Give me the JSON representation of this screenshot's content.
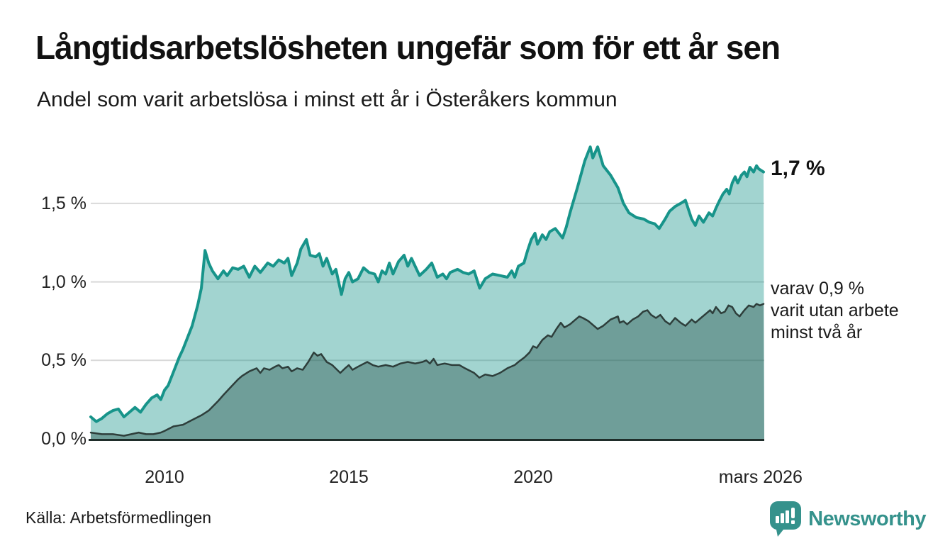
{
  "header": {
    "title": "Långtidsarbetslösheten ungefär som för ett år sen",
    "subtitle": "Andel som varit arbetslösa i minst ett år i Österåkers kommun"
  },
  "annotations": {
    "latest_value": "1,7 %",
    "secondary_lines": [
      "varav 0,9 %",
      "varit utan arbete",
      "minst två år"
    ]
  },
  "footer": {
    "source": "Källa: Arbetsförmedlingen",
    "brand": "Newsworthy"
  },
  "colors": {
    "series1_line": "#17948a",
    "series1_fill": "rgba(23,148,138,0.40)",
    "series2_line": "#2e3e3b",
    "series2_fill": "rgba(30,70,64,0.38)",
    "gridline": "#d9d9d9",
    "baseline": "#1f2d2a",
    "axis_text": "#222222",
    "brand_teal": "#35928c"
  },
  "chart_data": {
    "type": "area",
    "title": "Långtidsarbetslösheten ungefär som för ett år sen",
    "subtitle": "Andel som varit arbetslösa i minst ett år i Österåkers kommun",
    "xlabel": "",
    "ylabel": "",
    "unit": "%",
    "x_domain": [
      2008.0,
      2026.3
    ],
    "ylim": [
      0,
      2.0
    ],
    "grid": "horizontal",
    "legend_position": "right-annotations",
    "y_ticks": [
      {
        "value": 0.0,
        "label": "0,0 %"
      },
      {
        "value": 0.5,
        "label": "0,5 %"
      },
      {
        "value": 1.0,
        "label": "1,0 %"
      },
      {
        "value": 1.5,
        "label": "1,5 %"
      }
    ],
    "x_ticks": [
      {
        "year": 2010,
        "label": "2010"
      },
      {
        "year": 2015,
        "label": "2015"
      },
      {
        "year": 2020,
        "label": "2020"
      },
      {
        "year": 2026.17,
        "label": "mars 2026"
      }
    ],
    "series": [
      {
        "name": "Andel arbetslösa minst ett år",
        "latest": 1.7,
        "points": [
          [
            2008.0,
            0.14
          ],
          [
            2008.15,
            0.11
          ],
          [
            2008.3,
            0.13
          ],
          [
            2008.45,
            0.16
          ],
          [
            2008.6,
            0.18
          ],
          [
            2008.75,
            0.19
          ],
          [
            2008.9,
            0.14
          ],
          [
            2009.05,
            0.17
          ],
          [
            2009.2,
            0.2
          ],
          [
            2009.35,
            0.17
          ],
          [
            2009.5,
            0.22
          ],
          [
            2009.65,
            0.26
          ],
          [
            2009.8,
            0.28
          ],
          [
            2009.9,
            0.25
          ],
          [
            2010.0,
            0.31
          ],
          [
            2010.1,
            0.34
          ],
          [
            2010.25,
            0.43
          ],
          [
            2010.4,
            0.52
          ],
          [
            2010.5,
            0.57
          ],
          [
            2010.65,
            0.66
          ],
          [
            2010.75,
            0.72
          ],
          [
            2010.9,
            0.85
          ],
          [
            2011.0,
            0.96
          ],
          [
            2011.1,
            1.2
          ],
          [
            2011.2,
            1.12
          ],
          [
            2011.3,
            1.07
          ],
          [
            2011.45,
            1.02
          ],
          [
            2011.6,
            1.07
          ],
          [
            2011.7,
            1.04
          ],
          [
            2011.85,
            1.09
          ],
          [
            2012.0,
            1.08
          ],
          [
            2012.15,
            1.1
          ],
          [
            2012.3,
            1.03
          ],
          [
            2012.45,
            1.1
          ],
          [
            2012.6,
            1.06
          ],
          [
            2012.8,
            1.12
          ],
          [
            2012.95,
            1.1
          ],
          [
            2013.1,
            1.14
          ],
          [
            2013.25,
            1.12
          ],
          [
            2013.35,
            1.15
          ],
          [
            2013.45,
            1.04
          ],
          [
            2013.6,
            1.12
          ],
          [
            2013.7,
            1.21
          ],
          [
            2013.85,
            1.27
          ],
          [
            2013.95,
            1.17
          ],
          [
            2014.1,
            1.16
          ],
          [
            2014.2,
            1.18
          ],
          [
            2014.3,
            1.1
          ],
          [
            2014.4,
            1.15
          ],
          [
            2014.55,
            1.05
          ],
          [
            2014.65,
            1.08
          ],
          [
            2014.8,
            0.92
          ],
          [
            2014.9,
            1.02
          ],
          [
            2015.0,
            1.06
          ],
          [
            2015.1,
            1.0
          ],
          [
            2015.25,
            1.02
          ],
          [
            2015.4,
            1.09
          ],
          [
            2015.55,
            1.06
          ],
          [
            2015.7,
            1.05
          ],
          [
            2015.8,
            1.0
          ],
          [
            2015.9,
            1.07
          ],
          [
            2016.0,
            1.05
          ],
          [
            2016.1,
            1.12
          ],
          [
            2016.2,
            1.05
          ],
          [
            2016.35,
            1.13
          ],
          [
            2016.5,
            1.17
          ],
          [
            2016.6,
            1.1
          ],
          [
            2016.7,
            1.15
          ],
          [
            2016.8,
            1.1
          ],
          [
            2016.92,
            1.04
          ],
          [
            2017.1,
            1.08
          ],
          [
            2017.25,
            1.12
          ],
          [
            2017.4,
            1.03
          ],
          [
            2017.55,
            1.05
          ],
          [
            2017.65,
            1.02
          ],
          [
            2017.75,
            1.06
          ],
          [
            2017.95,
            1.08
          ],
          [
            2018.1,
            1.06
          ],
          [
            2018.25,
            1.05
          ],
          [
            2018.4,
            1.07
          ],
          [
            2018.55,
            0.96
          ],
          [
            2018.7,
            1.02
          ],
          [
            2018.9,
            1.05
          ],
          [
            2019.1,
            1.04
          ],
          [
            2019.3,
            1.03
          ],
          [
            2019.42,
            1.07
          ],
          [
            2019.5,
            1.03
          ],
          [
            2019.6,
            1.1
          ],
          [
            2019.75,
            1.12
          ],
          [
            2019.85,
            1.2
          ],
          [
            2019.95,
            1.27
          ],
          [
            2020.05,
            1.31
          ],
          [
            2020.12,
            1.24
          ],
          [
            2020.25,
            1.3
          ],
          [
            2020.35,
            1.27
          ],
          [
            2020.45,
            1.32
          ],
          [
            2020.6,
            1.34
          ],
          [
            2020.8,
            1.28
          ],
          [
            2020.9,
            1.35
          ],
          [
            2021.0,
            1.44
          ],
          [
            2021.2,
            1.6
          ],
          [
            2021.4,
            1.77
          ],
          [
            2021.55,
            1.86
          ],
          [
            2021.62,
            1.79
          ],
          [
            2021.75,
            1.86
          ],
          [
            2021.9,
            1.74
          ],
          [
            2022.1,
            1.68
          ],
          [
            2022.3,
            1.6
          ],
          [
            2022.45,
            1.5
          ],
          [
            2022.6,
            1.44
          ],
          [
            2022.8,
            1.41
          ],
          [
            2023.0,
            1.4
          ],
          [
            2023.15,
            1.38
          ],
          [
            2023.3,
            1.37
          ],
          [
            2023.42,
            1.34
          ],
          [
            2023.58,
            1.4
          ],
          [
            2023.7,
            1.45
          ],
          [
            2023.85,
            1.48
          ],
          [
            2024.0,
            1.5
          ],
          [
            2024.13,
            1.52
          ],
          [
            2024.3,
            1.4
          ],
          [
            2024.4,
            1.36
          ],
          [
            2024.5,
            1.42
          ],
          [
            2024.62,
            1.38
          ],
          [
            2024.77,
            1.44
          ],
          [
            2024.87,
            1.42
          ],
          [
            2024.96,
            1.47
          ],
          [
            2025.06,
            1.52
          ],
          [
            2025.15,
            1.56
          ],
          [
            2025.25,
            1.59
          ],
          [
            2025.32,
            1.56
          ],
          [
            2025.4,
            1.63
          ],
          [
            2025.48,
            1.67
          ],
          [
            2025.55,
            1.63
          ],
          [
            2025.65,
            1.68
          ],
          [
            2025.73,
            1.7
          ],
          [
            2025.8,
            1.67
          ],
          [
            2025.88,
            1.73
          ],
          [
            2025.98,
            1.7
          ],
          [
            2026.06,
            1.74
          ],
          [
            2026.12,
            1.72
          ],
          [
            2026.25,
            1.7
          ]
        ]
      },
      {
        "name": "varav utan arbete minst två år",
        "latest": 0.9,
        "points": [
          [
            2008.0,
            0.04
          ],
          [
            2008.3,
            0.03
          ],
          [
            2008.6,
            0.03
          ],
          [
            2008.9,
            0.02
          ],
          [
            2009.1,
            0.03
          ],
          [
            2009.3,
            0.04
          ],
          [
            2009.5,
            0.03
          ],
          [
            2009.7,
            0.03
          ],
          [
            2009.9,
            0.04
          ],
          [
            2010.0,
            0.05
          ],
          [
            2010.25,
            0.08
          ],
          [
            2010.5,
            0.09
          ],
          [
            2010.75,
            0.12
          ],
          [
            2011.0,
            0.15
          ],
          [
            2011.2,
            0.18
          ],
          [
            2011.45,
            0.24
          ],
          [
            2011.6,
            0.28
          ],
          [
            2011.8,
            0.33
          ],
          [
            2012.0,
            0.38
          ],
          [
            2012.1,
            0.4
          ],
          [
            2012.3,
            0.43
          ],
          [
            2012.5,
            0.45
          ],
          [
            2012.6,
            0.42
          ],
          [
            2012.7,
            0.45
          ],
          [
            2012.85,
            0.44
          ],
          [
            2013.0,
            0.46
          ],
          [
            2013.1,
            0.47
          ],
          [
            2013.2,
            0.45
          ],
          [
            2013.35,
            0.46
          ],
          [
            2013.45,
            0.43
          ],
          [
            2013.6,
            0.45
          ],
          [
            2013.75,
            0.44
          ],
          [
            2013.9,
            0.49
          ],
          [
            2014.05,
            0.55
          ],
          [
            2014.15,
            0.53
          ],
          [
            2014.25,
            0.54
          ],
          [
            2014.4,
            0.49
          ],
          [
            2014.55,
            0.47
          ],
          [
            2014.77,
            0.42
          ],
          [
            2014.9,
            0.45
          ],
          [
            2015.0,
            0.47
          ],
          [
            2015.1,
            0.44
          ],
          [
            2015.25,
            0.46
          ],
          [
            2015.5,
            0.49
          ],
          [
            2015.65,
            0.47
          ],
          [
            2015.8,
            0.46
          ],
          [
            2016.0,
            0.47
          ],
          [
            2016.2,
            0.46
          ],
          [
            2016.4,
            0.48
          ],
          [
            2016.6,
            0.49
          ],
          [
            2016.8,
            0.48
          ],
          [
            2017.0,
            0.49
          ],
          [
            2017.1,
            0.5
          ],
          [
            2017.2,
            0.48
          ],
          [
            2017.3,
            0.51
          ],
          [
            2017.4,
            0.47
          ],
          [
            2017.6,
            0.48
          ],
          [
            2017.8,
            0.47
          ],
          [
            2018.0,
            0.47
          ],
          [
            2018.15,
            0.45
          ],
          [
            2018.4,
            0.42
          ],
          [
            2018.54,
            0.39
          ],
          [
            2018.7,
            0.41
          ],
          [
            2018.9,
            0.4
          ],
          [
            2019.1,
            0.42
          ],
          [
            2019.3,
            0.45
          ],
          [
            2019.5,
            0.47
          ],
          [
            2019.6,
            0.49
          ],
          [
            2019.77,
            0.52
          ],
          [
            2019.9,
            0.55
          ],
          [
            2020.0,
            0.59
          ],
          [
            2020.1,
            0.58
          ],
          [
            2020.25,
            0.63
          ],
          [
            2020.4,
            0.66
          ],
          [
            2020.5,
            0.65
          ],
          [
            2020.63,
            0.7
          ],
          [
            2020.75,
            0.74
          ],
          [
            2020.85,
            0.71
          ],
          [
            2021.0,
            0.73
          ],
          [
            2021.1,
            0.75
          ],
          [
            2021.25,
            0.78
          ],
          [
            2021.35,
            0.77
          ],
          [
            2021.5,
            0.75
          ],
          [
            2021.65,
            0.72
          ],
          [
            2021.75,
            0.7
          ],
          [
            2021.9,
            0.72
          ],
          [
            2022.1,
            0.76
          ],
          [
            2022.3,
            0.78
          ],
          [
            2022.35,
            0.74
          ],
          [
            2022.45,
            0.75
          ],
          [
            2022.55,
            0.73
          ],
          [
            2022.7,
            0.76
          ],
          [
            2022.85,
            0.78
          ],
          [
            2022.98,
            0.81
          ],
          [
            2023.1,
            0.82
          ],
          [
            2023.2,
            0.79
          ],
          [
            2023.33,
            0.77
          ],
          [
            2023.45,
            0.79
          ],
          [
            2023.58,
            0.75
          ],
          [
            2023.71,
            0.73
          ],
          [
            2023.85,
            0.77
          ],
          [
            2024.0,
            0.74
          ],
          [
            2024.13,
            0.72
          ],
          [
            2024.3,
            0.76
          ],
          [
            2024.4,
            0.74
          ],
          [
            2024.55,
            0.77
          ],
          [
            2024.7,
            0.8
          ],
          [
            2024.8,
            0.82
          ],
          [
            2024.87,
            0.8
          ],
          [
            2024.96,
            0.84
          ],
          [
            2025.1,
            0.8
          ],
          [
            2025.2,
            0.81
          ],
          [
            2025.3,
            0.85
          ],
          [
            2025.4,
            0.84
          ],
          [
            2025.5,
            0.8
          ],
          [
            2025.6,
            0.78
          ],
          [
            2025.73,
            0.82
          ],
          [
            2025.85,
            0.85
          ],
          [
            2025.98,
            0.84
          ],
          [
            2026.06,
            0.86
          ],
          [
            2026.15,
            0.85
          ],
          [
            2026.25,
            0.86
          ]
        ]
      }
    ]
  }
}
